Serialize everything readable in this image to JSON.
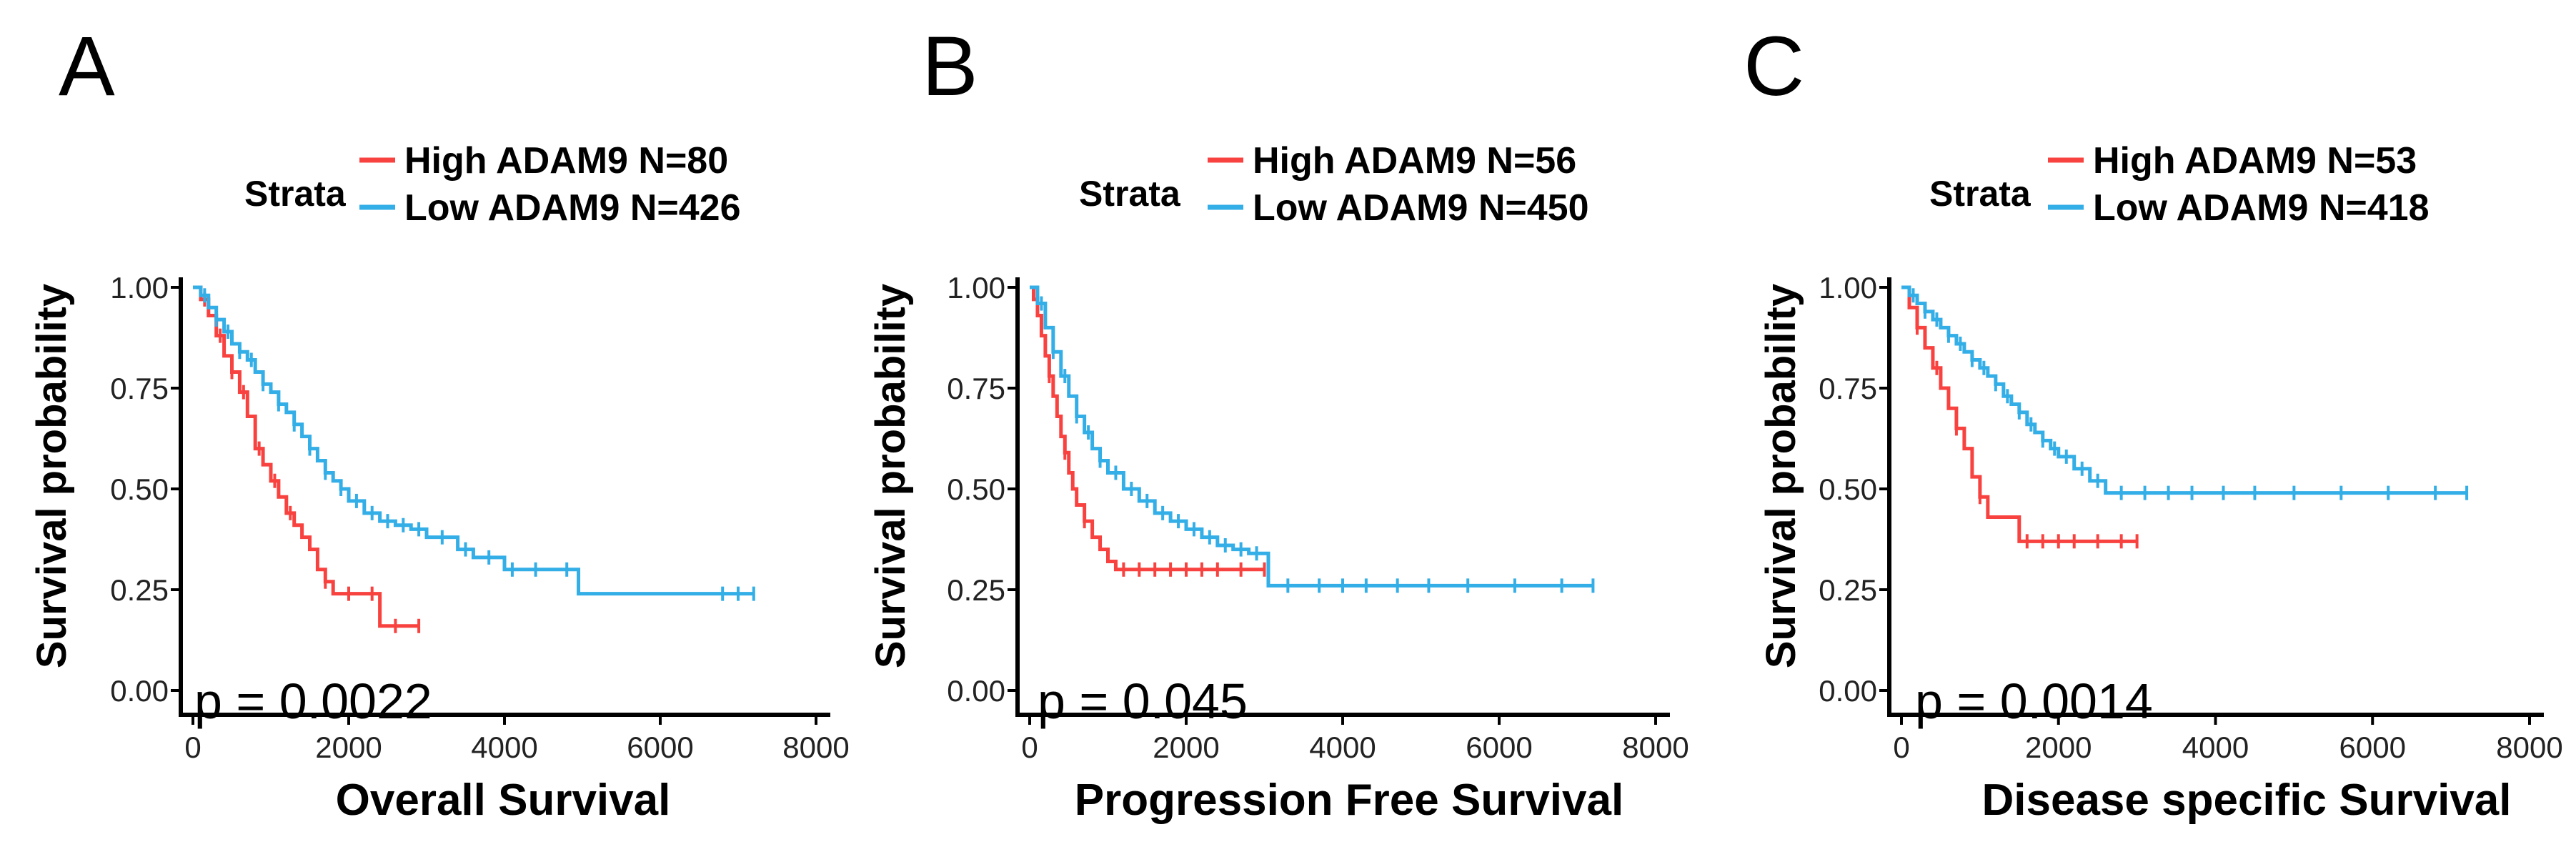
{
  "colors": {
    "high": "#f8423f",
    "low": "#33aee6",
    "axis": "#000000"
  },
  "chart_data": [
    {
      "type": "line",
      "panel": "A",
      "legend_title": "Strata",
      "xlabel": "Overall Survival",
      "ylabel": "Survival probability",
      "xlim": [
        0,
        8000
      ],
      "ylim": [
        0,
        1
      ],
      "xticks": [
        0,
        2000,
        4000,
        6000,
        8000
      ],
      "xtick_labels": [
        "0",
        "2000",
        "4000",
        "6000",
        "8000"
      ],
      "yticks": [
        0,
        0.25,
        0.5,
        0.75,
        1
      ],
      "ytick_labels": [
        "0.00",
        "0.25",
        "0.50",
        "0.75",
        "1.00"
      ],
      "pvalue": "p = 0.0022",
      "series": [
        {
          "name": "High ADAM9 N=80",
          "color_key": "high",
          "x": [
            0,
            100,
            200,
            300,
            400,
            500,
            600,
            700,
            800,
            900,
            1000,
            1100,
            1200,
            1300,
            1400,
            1500,
            1600,
            1700,
            1800,
            2000,
            2400,
            2900
          ],
          "y": [
            1.0,
            0.97,
            0.93,
            0.88,
            0.83,
            0.79,
            0.74,
            0.68,
            0.6,
            0.56,
            0.52,
            0.48,
            0.44,
            0.41,
            0.38,
            0.35,
            0.3,
            0.27,
            0.24,
            0.24,
            0.16,
            0.16
          ],
          "censor_x": [
            150,
            350,
            500,
            650,
            850,
            1050,
            1250,
            1700,
            2000,
            2300,
            2600,
            2900
          ]
        },
        {
          "name": "Low ADAM9 N=426",
          "color_key": "low",
          "x": [
            0,
            100,
            200,
            300,
            400,
            500,
            600,
            700,
            800,
            900,
            1000,
            1100,
            1200,
            1300,
            1400,
            1500,
            1600,
            1700,
            1800,
            1900,
            2000,
            2200,
            2400,
            2600,
            2800,
            3000,
            3400,
            3600,
            4000,
            4500,
            4900,
            4950,
            6000,
            7200
          ],
          "y": [
            1.0,
            0.98,
            0.95,
            0.92,
            0.89,
            0.86,
            0.84,
            0.82,
            0.79,
            0.76,
            0.74,
            0.71,
            0.69,
            0.66,
            0.63,
            0.6,
            0.57,
            0.54,
            0.52,
            0.5,
            0.47,
            0.44,
            0.42,
            0.41,
            0.4,
            0.38,
            0.35,
            0.33,
            0.3,
            0.3,
            0.3,
            0.24,
            0.24,
            0.24
          ],
          "censor_x": [
            150,
            300,
            450,
            600,
            750,
            900,
            1100,
            1300,
            1500,
            1700,
            1900,
            2100,
            2300,
            2500,
            2700,
            2900,
            3200,
            3500,
            3800,
            4100,
            4400,
            4800,
            6800,
            7000,
            7200
          ]
        }
      ]
    },
    {
      "type": "line",
      "panel": "B",
      "legend_title": "Strata",
      "xlabel": "Progression Free Survival",
      "ylabel": "Survival probability",
      "xlim": [
        0,
        8000
      ],
      "ylim": [
        0,
        1
      ],
      "xticks": [
        0,
        2000,
        4000,
        6000,
        8000
      ],
      "xtick_labels": [
        "0",
        "2000",
        "4000",
        "6000",
        "8000"
      ],
      "yticks": [
        0,
        0.25,
        0.5,
        0.75,
        1
      ],
      "ytick_labels": [
        "0.00",
        "0.25",
        "0.50",
        "0.75",
        "1.00"
      ],
      "pvalue": "p = 0.045",
      "series": [
        {
          "name": "High ADAM9 N=56",
          "color_key": "high",
          "x": [
            0,
            50,
            100,
            150,
            200,
            250,
            300,
            350,
            400,
            450,
            500,
            550,
            600,
            700,
            800,
            900,
            1000,
            1100,
            1500,
            2000,
            2500,
            3000
          ],
          "y": [
            1.0,
            0.97,
            0.93,
            0.88,
            0.83,
            0.78,
            0.73,
            0.68,
            0.63,
            0.59,
            0.54,
            0.5,
            0.46,
            0.42,
            0.38,
            0.35,
            0.32,
            0.3,
            0.3,
            0.3,
            0.3,
            0.3
          ],
          "censor_x": [
            250,
            450,
            700,
            1200,
            1400,
            1600,
            1800,
            2000,
            2200,
            2400,
            2700,
            3000
          ]
        },
        {
          "name": "Low ADAM9 N=450",
          "color_key": "low",
          "x": [
            0,
            100,
            200,
            300,
            400,
            500,
            600,
            700,
            800,
            900,
            1000,
            1200,
            1400,
            1600,
            1800,
            2000,
            2200,
            2400,
            2600,
            2800,
            3000,
            3050,
            4000,
            5000,
            6000,
            7200
          ],
          "y": [
            1.0,
            0.96,
            0.9,
            0.84,
            0.78,
            0.73,
            0.68,
            0.64,
            0.6,
            0.57,
            0.54,
            0.5,
            0.47,
            0.44,
            0.42,
            0.4,
            0.38,
            0.36,
            0.35,
            0.34,
            0.34,
            0.26,
            0.26,
            0.26,
            0.26,
            0.26
          ],
          "censor_x": [
            150,
            300,
            450,
            600,
            750,
            900,
            1100,
            1300,
            1500,
            1700,
            1900,
            2100,
            2300,
            2500,
            2700,
            2900,
            3300,
            3700,
            4000,
            4300,
            4700,
            5100,
            5600,
            6200,
            6800,
            7200
          ]
        }
      ]
    },
    {
      "type": "line",
      "panel": "C",
      "legend_title": "Strata",
      "xlabel": "Disease specific Survival",
      "ylabel": "Survival probability",
      "xlim": [
        0,
        8000
      ],
      "ylim": [
        0,
        1
      ],
      "xticks": [
        0,
        2000,
        4000,
        6000,
        8000
      ],
      "xtick_labels": [
        "0",
        "2000",
        "4000",
        "6000",
        "8000"
      ],
      "yticks": [
        0,
        0.25,
        0.5,
        0.75,
        1
      ],
      "ytick_labels": [
        "0.00",
        "0.25",
        "0.50",
        "0.75",
        "1.00"
      ],
      "pvalue": "p = 0.0014",
      "series": [
        {
          "name": "High ADAM9 N=53",
          "color_key": "high",
          "x": [
            0,
            100,
            200,
            300,
            400,
            500,
            600,
            700,
            800,
            900,
            1000,
            1100,
            1200,
            1500,
            2000,
            2500,
            3000
          ],
          "y": [
            1.0,
            0.95,
            0.9,
            0.85,
            0.8,
            0.75,
            0.7,
            0.65,
            0.6,
            0.53,
            0.48,
            0.43,
            0.43,
            0.37,
            0.37,
            0.37,
            0.37
          ],
          "censor_x": [
            200,
            450,
            700,
            1000,
            1600,
            1800,
            2000,
            2200,
            2500,
            2800,
            3000
          ]
        },
        {
          "name": "Low ADAM9 N=418",
          "color_key": "low",
          "x": [
            0,
            100,
            200,
            300,
            400,
            500,
            600,
            700,
            800,
            900,
            1000,
            1100,
            1200,
            1300,
            1400,
            1500,
            1600,
            1700,
            1800,
            1900,
            2000,
            2200,
            2400,
            2600,
            3000,
            4000,
            5000,
            6000,
            7200
          ],
          "y": [
            1.0,
            0.98,
            0.96,
            0.94,
            0.92,
            0.9,
            0.88,
            0.86,
            0.84,
            0.82,
            0.8,
            0.78,
            0.76,
            0.73,
            0.71,
            0.69,
            0.66,
            0.64,
            0.62,
            0.6,
            0.58,
            0.55,
            0.52,
            0.49,
            0.49,
            0.49,
            0.49,
            0.49,
            0.49
          ],
          "censor_x": [
            150,
            300,
            450,
            600,
            750,
            900,
            1050,
            1200,
            1350,
            1500,
            1650,
            1800,
            1950,
            2100,
            2300,
            2500,
            2800,
            3100,
            3400,
            3700,
            4100,
            4500,
            5000,
            5600,
            6200,
            6800,
            7200
          ]
        }
      ]
    }
  ]
}
